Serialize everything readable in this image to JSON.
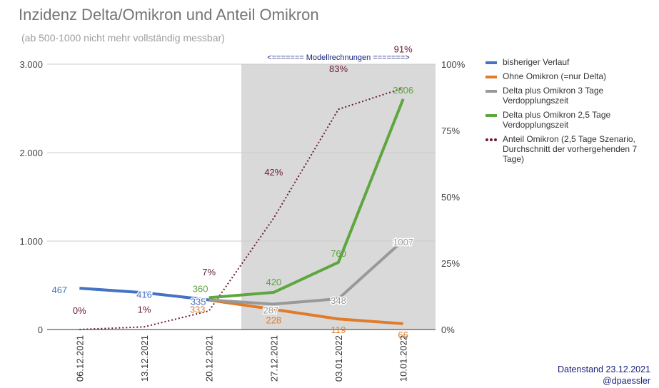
{
  "header": {
    "title": "Inzidenz Delta/Omikron und Anteil Omikron",
    "subtitle": "(ab 500-1000 nicht mehr vollständig messbar)"
  },
  "footer": {
    "source_line1": "Datenstand 23.12.2021",
    "source_line2": "@dpaessler"
  },
  "chart_data": {
    "type": "line",
    "title": "Inzidenz Delta/Omikron und Anteil Omikron",
    "subtitle": "(ab 500-1000 nicht mehr vollständig messbar)",
    "categories": [
      "06.12.2021",
      "13.12.2021",
      "20.12.2021",
      "27.12.2021",
      "03.01.2022",
      "10.01.2022"
    ],
    "shaded_region": {
      "from": "20.12.2021",
      "to": "10.01.2022",
      "label": "<======= Modellrechnungen =======>",
      "color": "#d9d9d9"
    },
    "y_left": {
      "min": 0,
      "max": 3000,
      "ticks": [
        0,
        1000,
        2000,
        3000
      ],
      "tick_labels": [
        "0",
        "1.000",
        "2.000",
        "3.000"
      ]
    },
    "y_right": {
      "min": 0,
      "max": 100,
      "ticks": [
        0,
        25,
        50,
        75,
        100
      ],
      "tick_labels": [
        "0%",
        "25%",
        "50%",
        "75%",
        "100%"
      ]
    },
    "grid": true,
    "legend_position": "right",
    "series": [
      {
        "name": "bisheriger Verlauf",
        "axis": "left",
        "color": "#4472c4",
        "style": "solid",
        "values": [
          467,
          416,
          335,
          null,
          null,
          null
        ],
        "labels": [
          "467",
          "416",
          "335",
          "",
          "",
          ""
        ]
      },
      {
        "name": "Ohne Omikron (=nur Delta)",
        "axis": "left",
        "color": "#e07b2a",
        "style": "solid",
        "values": [
          null,
          null,
          333,
          228,
          119,
          66
        ],
        "labels": [
          "",
          "",
          "333",
          "228",
          "119",
          "66"
        ]
      },
      {
        "name": "Delta plus Omikron 3 Tage Verdopplungszeit",
        "axis": "left",
        "color": "#999999",
        "style": "solid",
        "values": [
          null,
          null,
          335,
          287,
          348,
          1007
        ],
        "labels": [
          "",
          "",
          "",
          "287",
          "348",
          "1007"
        ]
      },
      {
        "name": "Delta plus Omikron 2,5 Tage Verdopplungszeit",
        "axis": "left",
        "color": "#5ea63f",
        "style": "solid",
        "values": [
          null,
          null,
          360,
          420,
          760,
          2606
        ],
        "labels": [
          "",
          "",
          "360",
          "420",
          "760",
          "2606"
        ]
      },
      {
        "name": "Anteil Omikron (2,5 Tage Szenario, Durchschnitt der vorhergehenden 7 Tage)",
        "axis": "right",
        "color": "#6a1b38",
        "style": "dotted",
        "values": [
          0,
          1,
          7,
          42,
          83,
          91
        ],
        "labels": [
          "0%",
          "1%",
          "7%",
          "42%",
          "83%",
          "91%"
        ]
      }
    ]
  }
}
